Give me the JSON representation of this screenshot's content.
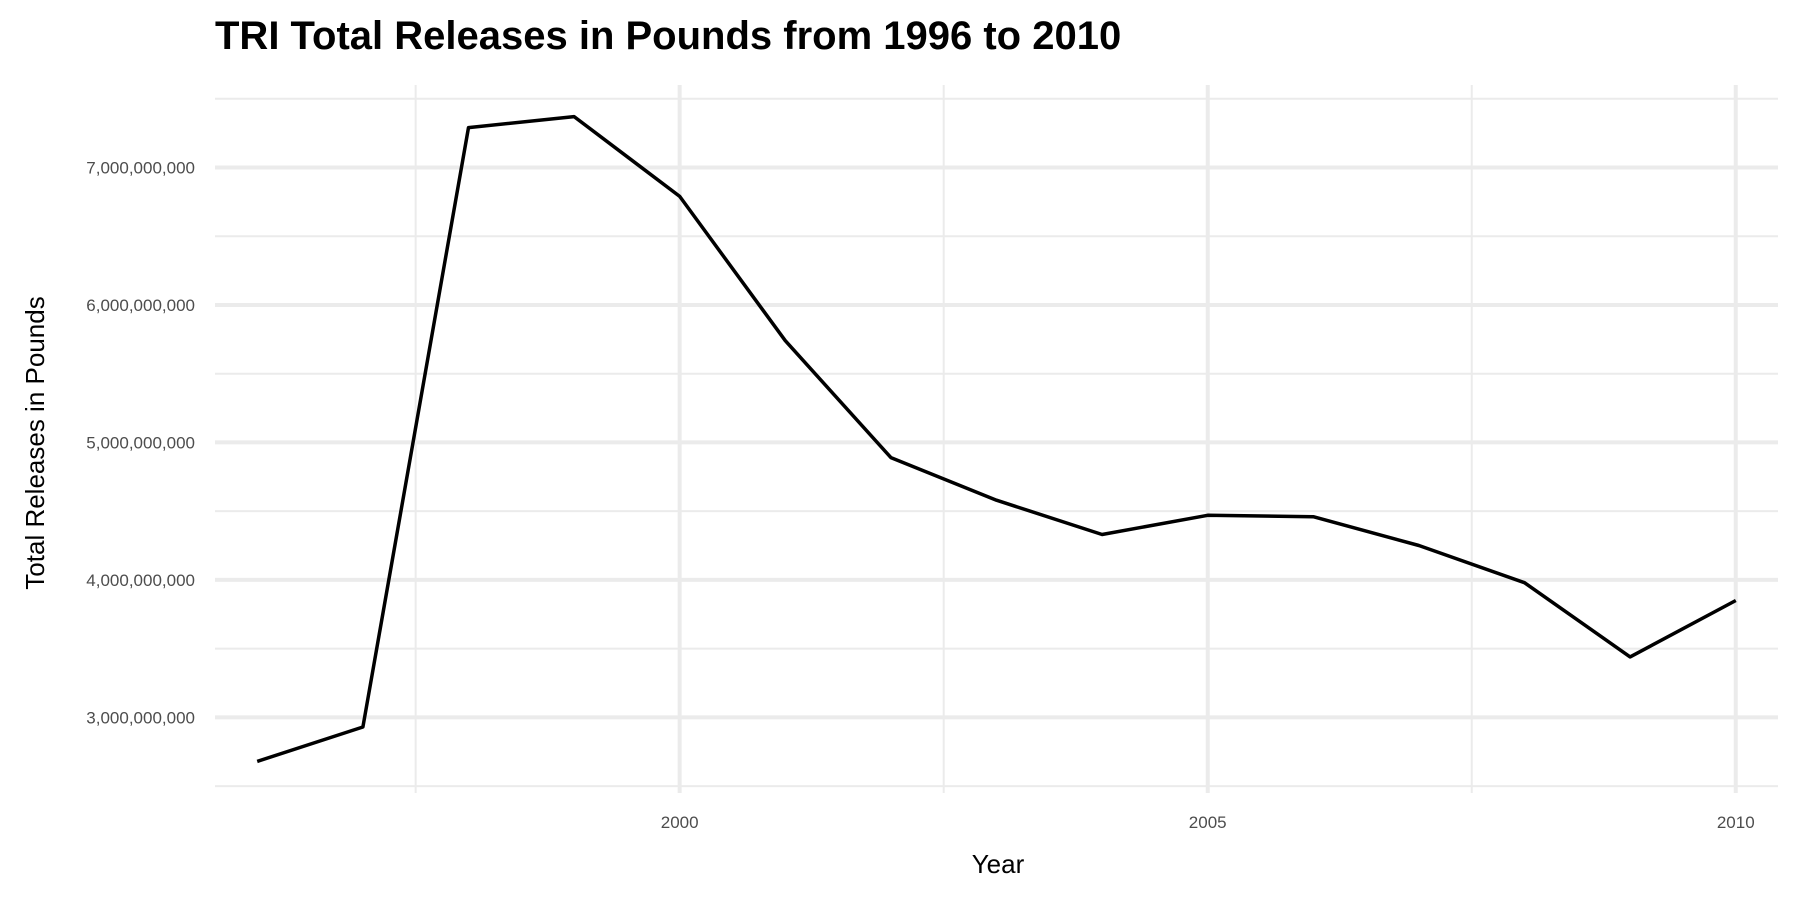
{
  "chart_data": {
    "type": "line",
    "title": "TRI Total Releases in Pounds from 1996 to 2010",
    "xlabel": "Year",
    "ylabel": "Total Releases in Pounds",
    "xlim": [
      1995.6,
      2010.4
    ],
    "ylim": [
      2450000000,
      7600000000
    ],
    "x_ticks": [
      2000,
      2005,
      2010
    ],
    "x_tick_labels": [
      "2000",
      "2005",
      "2010"
    ],
    "x_minor_ticks": [
      1997.5,
      2002.5,
      2007.5
    ],
    "y_ticks": [
      3000000000,
      4000000000,
      5000000000,
      6000000000,
      7000000000
    ],
    "y_tick_labels": [
      "3,000,000,000",
      "4,000,000,000",
      "5,000,000,000",
      "6,000,000,000",
      "7,000,000,000"
    ],
    "y_minor_ticks": [
      2500000000,
      3500000000,
      4500000000,
      5500000000,
      6500000000,
      7500000000
    ],
    "grid": true,
    "line_color": "#000000",
    "grid_color": "#ebebeb",
    "series": [
      {
        "x": [
          1996,
          1997,
          1998,
          1999,
          2000,
          2001,
          2002,
          2003,
          2004,
          2005,
          2006,
          2007,
          2008,
          2009,
          2010
        ],
        "values": [
          2680000000,
          2930000000,
          7290000000,
          7370000000,
          6790000000,
          5740000000,
          4890000000,
          4580000000,
          4330000000,
          4470000000,
          4460000000,
          4250000000,
          3980000000,
          3440000000,
          3850000000
        ]
      }
    ]
  }
}
